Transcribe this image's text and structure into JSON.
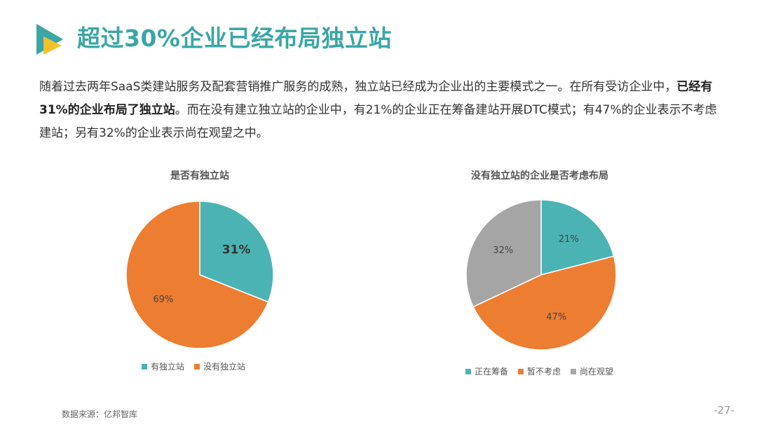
{
  "header": {
    "title": "超过30%企业已经布局独立站"
  },
  "intro": {
    "part1": "随着过去两年SaaS类建站服务及配套营销推广服务的成熟，独立站已经成为企业出的主要模式之一。在所有受访企业中，",
    "bold": "已经有31%的企业布局了独立站",
    "part2": "。而在没有建立独立站的企业中，有21%的企业正在筹备建站开展DTC模式；有47%的企业表示不考虑建站；另有32%的企业表示尚在观望之中。"
  },
  "colors": {
    "accent": "#3aa6a6",
    "teal": "#4bb3b3",
    "orange": "#ed7d31",
    "gray": "#a5a5a5"
  },
  "chart_data": [
    {
      "type": "pie",
      "title": "是否有独立站",
      "categories": [
        "有独立站",
        "没有独立站"
      ],
      "values": [
        31,
        69
      ],
      "labels": [
        "31%",
        "69%"
      ],
      "colors": [
        "#4bb3b3",
        "#ed7d31"
      ],
      "legend": "bottom"
    },
    {
      "type": "pie",
      "title": "没有独立站的企业是否考虑布局",
      "categories": [
        "正在筹备",
        "暂不考虑",
        "尚在观望"
      ],
      "values": [
        21,
        47,
        32
      ],
      "labels": [
        "21%",
        "47%",
        "32%"
      ],
      "colors": [
        "#4bb3b3",
        "#ed7d31",
        "#a5a5a5"
      ],
      "legend": "bottom"
    }
  ],
  "footer": {
    "source": "数据来源：亿邦智库",
    "page": "-27-"
  }
}
